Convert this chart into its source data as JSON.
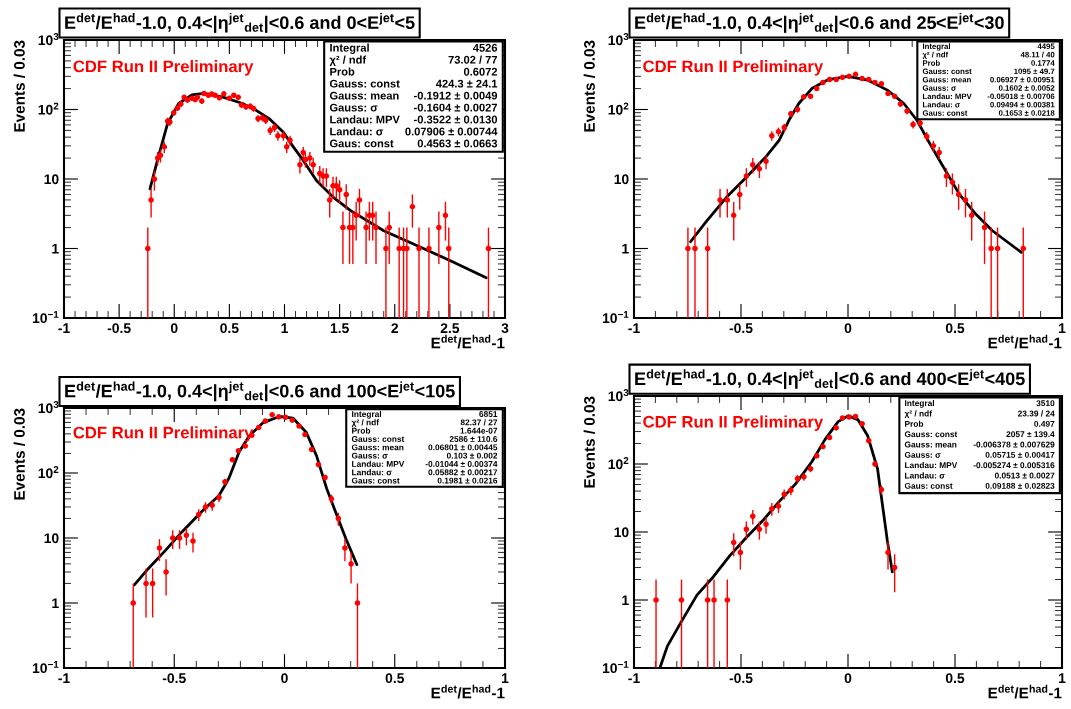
{
  "chart_data": [
    {
      "type": "scatter",
      "title": "E$^{det}$/E$^{had}$-1.0, 0.4<|η$^{jet}$$_{det}$|<0.6 and 0<E$^{jet}$<5",
      "xlabel": "E$^{det}$/E$^{had}$-1",
      "ylabel": "Events / 0.03",
      "log": "y",
      "grid": false,
      "xlim": [
        -1,
        3
      ],
      "xticks": [
        -1,
        -0.5,
        0,
        0.5,
        1,
        1.5,
        2,
        2.5,
        3
      ],
      "ylim": [
        0.1,
        1000
      ],
      "yticks": [
        {
          "value": 0.1,
          "label": "10$^{−1}$"
        },
        {
          "value": 1,
          "label": "1"
        },
        {
          "value": 10,
          "label": "10"
        },
        {
          "value": 100,
          "label": "10$^{2}$"
        },
        {
          "value": 1000,
          "label": "10$^{3}$"
        }
      ],
      "annotations": [
        "CDF Run II Preliminary",
        "Integral",
        "4526",
        "χ² / ndf",
        "73.02 / 77",
        "Prob",
        "0.6072",
        "Gauss: const",
        "424.3 ± 24.1",
        "Gauss: mean",
        "-0.1912 ± 0.0049",
        "Gauss: σ",
        "-0.1604 ± 0.0027",
        "Landau: MPV",
        "-0.3522 ± 0.0130",
        "Landau: σ",
        "0.07906 ± 0.00744",
        "Gaus: const",
        "0.4563 ± 0.0663"
      ],
      "series": [
        {
          "type": "scatter",
          "color": "#ff0000",
          "marker": "circle",
          "x": [
            -0.24,
            -0.21,
            -0.18,
            -0.15,
            -0.125,
            -0.09,
            -0.06,
            -0.04,
            -0.005,
            0.03,
            0.06,
            0.09,
            0.12,
            0.16,
            0.19,
            0.21,
            0.25,
            0.27,
            0.31,
            0.34,
            0.37,
            0.41,
            0.45,
            0.5,
            0.54,
            0.58,
            0.61,
            0.65,
            0.69,
            0.72,
            0.76,
            0.8,
            0.83,
            0.87,
            0.91,
            0.94,
            0.99,
            1.02,
            1.05,
            1.14,
            1.17,
            1.19,
            1.23,
            1.26,
            1.32,
            1.35,
            1.38,
            1.41,
            1.44,
            1.47,
            1.5,
            1.53,
            1.56,
            1.59,
            1.62,
            1.65,
            1.68,
            1.74,
            1.77,
            1.8,
            1.83,
            1.92,
            1.95,
            2.04,
            2.08,
            2.11,
            2.16,
            2.22,
            2.31,
            2.4,
            2.46,
            2.49,
            2.85
          ],
          "values": [
            1,
            5,
            10,
            20,
            22,
            29,
            68,
            66,
            90,
            105,
            120,
            150,
            137,
            145,
            139,
            150,
            132,
            170,
            160,
            167,
            160,
            148,
            168,
            145,
            160,
            150,
            116,
            109,
            111,
            103,
            74,
            76,
            70,
            50,
            55,
            42,
            42,
            29,
            36,
            16,
            24,
            19,
            20,
            16,
            12,
            11,
            11,
            5,
            8,
            8,
            7,
            2,
            6,
            2,
            2,
            3,
            5,
            2,
            3,
            3,
            2,
            1,
            2,
            1,
            1,
            1,
            4,
            1,
            1,
            2,
            3,
            1,
            1
          ],
          "errors": [
            [
              0.1,
              2
            ],
            2.2,
            3.2,
            4.5,
            4.7,
            5.4,
            8.2,
            8.1,
            9.5,
            10,
            11,
            12,
            12,
            12,
            12,
            12,
            11,
            13,
            13,
            13,
            13,
            12,
            13,
            12,
            13,
            12,
            11,
            10,
            11,
            10,
            8.6,
            8.7,
            8.4,
            7.1,
            7.4,
            6.5,
            6.5,
            5.4,
            6,
            4,
            4.9,
            4.4,
            4.5,
            4,
            3.4,
            3.3,
            3.3,
            2.2,
            2.8,
            2.8,
            2.6,
            1.4,
            2.4,
            1.4,
            1.4,
            1.7,
            2.2,
            1.4,
            1.7,
            1.7,
            1.4,
            [
              0.1,
              2
            ],
            1.4,
            [
              0.1,
              2
            ],
            [
              0.1,
              2
            ],
            [
              0.1,
              2
            ],
            2,
            [
              0.1,
              2
            ],
            [
              0.1,
              2
            ],
            1.4,
            1.7,
            [
              0.1,
              2
            ],
            [
              0.1,
              2
            ]
          ]
        },
        {
          "type": "line",
          "color": "#000000",
          "x": [
            -0.22,
            -0.145,
            -0.06,
            0.04,
            0.16,
            0.27,
            0.435,
            0.62,
            0.74,
            0.86,
            0.99,
            1.08,
            1.17,
            1.29,
            1.44,
            1.6,
            1.9,
            2.21,
            2.51,
            2.83
          ],
          "values": [
            7.2,
            20.6,
            63,
            122,
            162,
            170,
            152,
            122,
            98,
            74,
            47,
            29,
            18.5,
            9.5,
            5.5,
            3.5,
            1.8,
            1.09,
            0.66,
            0.38
          ]
        }
      ]
    },
    {
      "type": "scatter",
      "title": "E$^{det}$/E$^{had}$-1.0, 0.4<|η$^{jet}$$_{det}$|<0.6 and 25<E$^{jet}$<30",
      "xlabel": "E$^{det}$/E$^{had}$-1",
      "ylabel": "Events / 0.03",
      "log": "y",
      "grid": false,
      "xlim": [
        -1,
        1
      ],
      "xticks": [
        -1,
        -0.5,
        0,
        0.5,
        1
      ],
      "ylim": [
        0.1,
        1000
      ],
      "yticks": [
        {
          "value": 0.1,
          "label": "10$^{−1}$"
        },
        {
          "value": 1,
          "label": "1"
        },
        {
          "value": 10,
          "label": "10"
        },
        {
          "value": 100,
          "label": "10$^{2}$"
        },
        {
          "value": 1000,
          "label": "10$^{3}$"
        }
      ],
      "annotations": [
        "CDF Run II Preliminary",
        "Integral",
        "4495",
        "χ² / ndf",
        "48.11 / 40",
        "Prob",
        "0.1774",
        "Gauss: const",
        "1095 ± 49.7",
        "Gauss: mean",
        "0.06927 ± 0.00951",
        "Gauss: σ",
        "0.1602 ± 0.0052",
        "Landau: MPV",
        "-0.05018 ± 0.00706",
        "Landau: σ",
        "0.09494 ± 0.00381",
        "Gaus: const",
        "0.1653 ± 0.0218"
      ],
      "series": [
        {
          "type": "scatter",
          "color": "#ff0000",
          "marker": "circle",
          "x": [
            -0.748,
            -0.715,
            -0.656,
            -0.598,
            -0.564,
            -0.534,
            -0.506,
            -0.475,
            -0.445,
            -0.414,
            -0.383,
            -0.356,
            -0.325,
            -0.298,
            -0.267,
            -0.236,
            -0.207,
            -0.175,
            -0.146,
            -0.117,
            -0.086,
            -0.055,
            -0.026,
            0.005,
            0.035,
            0.066,
            0.097,
            0.126,
            0.156,
            0.187,
            0.218,
            0.245,
            0.276,
            0.304,
            0.337,
            0.368,
            0.399,
            0.426,
            0.46,
            0.488,
            0.517,
            0.549,
            0.578,
            0.638,
            0.669,
            0.699,
            0.819
          ],
          "values": [
            1,
            1,
            1,
            5,
            5,
            3,
            6,
            11,
            16,
            14,
            18,
            42,
            48,
            55,
            87,
            100,
            152,
            155,
            200,
            245,
            270,
            270,
            290,
            300,
            320,
            280,
            270,
            245,
            235,
            170,
            155,
            120,
            95,
            61,
            64,
            41,
            30,
            24,
            11,
            9,
            6,
            5,
            3,
            2,
            1,
            1,
            1
          ],
          "errors": [
            [
              0.1,
              2
            ],
            [
              0.1,
              2
            ],
            [
              0.1,
              2
            ],
            2.2,
            2.2,
            1.7,
            2.4,
            3.3,
            4,
            3.7,
            4.2,
            6.5,
            6.9,
            7.4,
            9.3,
            10,
            12,
            12,
            14,
            16,
            16,
            16,
            17,
            17,
            18,
            17,
            16,
            16,
            15,
            13,
            12,
            11,
            9.7,
            7.8,
            8,
            6.4,
            5.5,
            4.9,
            3.3,
            3,
            2.4,
            2.2,
            1.7,
            1.4,
            [
              0.1,
              2
            ],
            [
              0.1,
              2
            ],
            [
              0.1,
              2
            ]
          ]
        },
        {
          "type": "line",
          "color": "#000000",
          "x": [
            -0.736,
            -0.66,
            -0.567,
            -0.475,
            -0.383,
            -0.322,
            -0.276,
            -0.23,
            -0.169,
            -0.092,
            0,
            0.092,
            0.184,
            0.261,
            0.322,
            0.383,
            0.445,
            0.521,
            0.598,
            0.675,
            0.81
          ],
          "values": [
            1.25,
            2.5,
            5.5,
            10.6,
            21,
            36,
            70,
            122,
            200,
            270,
            300,
            265,
            190,
            122,
            70,
            32,
            15,
            6,
            3.1,
            1.8,
            0.88
          ]
        }
      ]
    },
    {
      "type": "scatter",
      "title": "E$^{det}$/E$^{had}$-1.0, 0.4<|η$^{jet}$$_{det}$|<0.6 and 100<E$^{jet}$<105",
      "xlabel": "E$^{det}$/E$^{had}$-1",
      "ylabel": "Events / 0.03",
      "log": "y",
      "grid": false,
      "xlim": [
        -1,
        1
      ],
      "xticks": [
        -1,
        -0.5,
        0,
        0.5,
        1
      ],
      "ylim": [
        0.1,
        1000
      ],
      "yticks": [
        {
          "value": 0.1,
          "label": "10$^{−1}$"
        },
        {
          "value": 1,
          "label": "1"
        },
        {
          "value": 10,
          "label": "10"
        },
        {
          "value": 100,
          "label": "10$^{2}$"
        },
        {
          "value": 1000,
          "label": "10$^{3}$"
        }
      ],
      "annotations": [
        "CDF Run II Preliminary",
        "Integral",
        "6851",
        "χ² / ndf",
        "82.37 / 27",
        "Prob",
        "1.644e-07",
        "Gauss: const",
        "2586 ± 110.6",
        "Gauss: mean",
        "0.06801 ± 0.00445",
        "Gauss: σ",
        "0.103 ± 0.002",
        "Landau: MPV",
        "-0.01044 ± 0.00374",
        "Landau: σ",
        "0.05882 ± 0.00217",
        "Gaus: const",
        "0.1981 ± 0.0216"
      ],
      "series": [
        {
          "type": "scatter",
          "color": "#ff0000",
          "marker": "circle",
          "x": [
            -0.686,
            -0.628,
            -0.598,
            -0.567,
            -0.537,
            -0.507,
            -0.476,
            -0.445,
            -0.415,
            -0.389,
            -0.358,
            -0.328,
            -0.297,
            -0.27,
            -0.236,
            -0.209,
            -0.178,
            -0.148,
            -0.117,
            -0.087,
            -0.056,
            -0.026,
            0.005,
            0.035,
            0.066,
            0.093,
            0.123,
            0.154,
            0.184,
            0.213,
            0.244,
            0.274,
            0.302,
            0.331
          ],
          "values": [
            1,
            2,
            2,
            7,
            3,
            10,
            10,
            11,
            9,
            23,
            30,
            32,
            42,
            73,
            160,
            220,
            260,
            380,
            500,
            630,
            790,
            730,
            720,
            650,
            530,
            390,
            230,
            135,
            85,
            40,
            20,
            7,
            4,
            1
          ],
          "errors": [
            [
              0.1,
              2
            ],
            1.4,
            1.4,
            2.6,
            1.7,
            3.2,
            3.2,
            3.3,
            3,
            4.8,
            5.5,
            5.7,
            6.5,
            8.5,
            13,
            15,
            16,
            19,
            22,
            25,
            28,
            27,
            27,
            25,
            23,
            20,
            15,
            12,
            9.2,
            6.3,
            4.5,
            2.6,
            2,
            [
              0.1,
              2
            ]
          ]
        },
        {
          "type": "line",
          "color": "#000000",
          "x": [
            -0.681,
            -0.617,
            -0.541,
            -0.465,
            -0.373,
            -0.297,
            -0.252,
            -0.206,
            -0.16,
            -0.099,
            -0.023,
            0.038,
            0.099,
            0.145,
            0.191,
            0.236,
            0.282,
            0.328
          ],
          "values": [
            1.9,
            3.4,
            6.4,
            12.4,
            26,
            45,
            83,
            210,
            370,
            590,
            740,
            700,
            420,
            185,
            58,
            23,
            9.1,
            3.9
          ]
        }
      ]
    },
    {
      "type": "scatter",
      "title": "E$^{det}$/E$^{had}$-1.0, 0.4<|η$^{jet}$$_{det}$|<0.6 and 400<E$^{jet}$<405",
      "xlabel": "E$^{det}$/E$^{had}$-1",
      "ylabel": "Events / 0.03",
      "log": "y",
      "grid": false,
      "xlim": [
        -1,
        1
      ],
      "xticks": [
        -1,
        -0.5,
        0,
        0.5,
        1
      ],
      "ylim": [
        0.1,
        1000
      ],
      "yticks": [
        {
          "value": 0.1,
          "label": "10$^{−1}$"
        },
        {
          "value": 1,
          "label": "1"
        },
        {
          "value": 10,
          "label": "10"
        },
        {
          "value": 100,
          "label": "10$^{2}$"
        },
        {
          "value": 1000,
          "label": "10$^{3}$"
        }
      ],
      "annotations": [
        "CDF Run II Preliminary",
        "Integral",
        "3510",
        "χ² / ndf",
        "23.39 / 24",
        "Prob",
        "0.497",
        "Gauss: const",
        "2057 ± 139.4",
        "Gauss: mean",
        "-0.006378 ± 0.007629",
        "Gauss: σ",
        "0.05715 ± 0.00417",
        "Landau: MPV",
        "-0.005274 ± 0.005316",
        "Landau: σ",
        "0.0513 ± 0.0027",
        "Gaus: const",
        "0.09188 ± 0.02823"
      ],
      "series": [
        {
          "type": "scatter",
          "color": "#ff0000",
          "marker": "circle",
          "x": [
            -0.897,
            -0.778,
            -0.656,
            -0.626,
            -0.564,
            -0.534,
            -0.503,
            -0.475,
            -0.445,
            -0.414,
            -0.383,
            -0.356,
            -0.325,
            -0.298,
            -0.267,
            -0.236,
            -0.206,
            -0.175,
            -0.146,
            -0.117,
            -0.086,
            -0.055,
            -0.026,
            0.005,
            0.035,
            0.066,
            0.097,
            0.126,
            0.156,
            0.187,
            0.218
          ],
          "values": [
            1,
            1,
            1,
            1,
            1,
            7,
            5,
            11,
            17,
            11,
            13,
            22,
            24,
            36,
            41,
            61,
            65,
            85,
            132,
            180,
            245,
            340,
            475,
            490,
            500,
            390,
            220,
            100,
            42,
            5,
            3
          ],
          "errors": [
            [
              0.1,
              2
            ],
            [
              0.1,
              2
            ],
            [
              0.1,
              2
            ],
            [
              0.1,
              2
            ],
            [
              0.1,
              2
            ],
            2.6,
            2.2,
            3.3,
            4.1,
            3.3,
            3.6,
            4.7,
            4.9,
            6,
            6.4,
            7.8,
            8.1,
            9.2,
            11,
            13,
            16,
            18,
            22,
            22,
            22,
            20,
            15,
            10,
            6.5,
            2.2,
            1.7
          ]
        },
        {
          "type": "line",
          "color": "#000000",
          "x": [
            -0.879,
            -0.844,
            -0.782,
            -0.706,
            -0.629,
            -0.552,
            -0.475,
            -0.399,
            -0.322,
            -0.245,
            -0.169,
            -0.107,
            -0.046,
            0,
            0.046,
            0.092,
            0.138,
            0.184,
            0.207
          ],
          "values": [
            0.1,
            0.21,
            0.46,
            1.18,
            2.2,
            4.5,
            8.3,
            14.6,
            28,
            51,
            108,
            230,
            420,
            510,
            450,
            260,
            85,
            7.4,
            2.6
          ]
        }
      ]
    }
  ]
}
